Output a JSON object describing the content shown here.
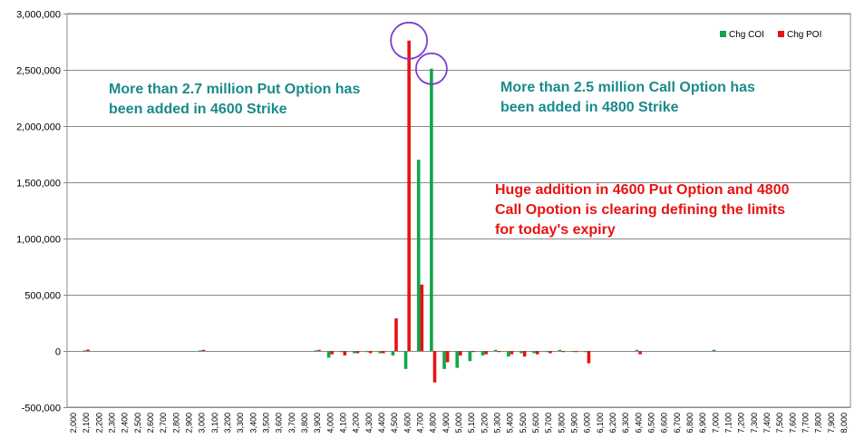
{
  "chart_data": {
    "type": "bar",
    "categories": [
      "2,000",
      "2,100",
      "2,200",
      "2,300",
      "2,400",
      "2,500",
      "2,600",
      "2,700",
      "2,800",
      "2,900",
      "3,000",
      "3,100",
      "3,200",
      "3,300",
      "3,400",
      "3,500",
      "3,600",
      "3,700",
      "3,800",
      "3,900",
      "4,000",
      "4,100",
      "4,200",
      "4,300",
      "4,400",
      "4,500",
      "4,600",
      "4,700",
      "4,800",
      "4,900",
      "5,000",
      "5,100",
      "5,200",
      "5,300",
      "5,400",
      "5,500",
      "5,600",
      "5,700",
      "5,800",
      "5,900",
      "6,000",
      "6,100",
      "6,200",
      "6,300",
      "6,400",
      "6,500",
      "6,600",
      "6,700",
      "6,800",
      "6,900",
      "7,000",
      "7,100",
      "7,200",
      "7,300",
      "7,400",
      "7,500",
      "7,600",
      "7,700",
      "7,800",
      "7,900",
      "8,000"
    ],
    "series": [
      {
        "name": "Chg COI",
        "color": "#11a64a",
        "values": [
          0,
          5000,
          0,
          0,
          0,
          0,
          0,
          0,
          0,
          0,
          5000,
          0,
          0,
          0,
          0,
          0,
          0,
          0,
          0,
          5000,
          -60000,
          -10000,
          -20000,
          -10000,
          -20000,
          -40000,
          -160000,
          1700000,
          2510000,
          -160000,
          -150000,
          -90000,
          -40000,
          10000,
          -50000,
          -20000,
          -20000,
          -10000,
          10000,
          -5000,
          -10000,
          0,
          0,
          0,
          10000,
          0,
          0,
          0,
          0,
          0,
          10000,
          0,
          0,
          0,
          0,
          0,
          0,
          0,
          0,
          0,
          0
        ]
      },
      {
        "name": "Chg POI",
        "color": "#e81212",
        "values": [
          0,
          12000,
          0,
          0,
          0,
          0,
          0,
          0,
          0,
          0,
          10000,
          0,
          0,
          0,
          0,
          0,
          0,
          0,
          0,
          10000,
          -30000,
          -40000,
          -20000,
          -20000,
          -20000,
          290000,
          2760000,
          590000,
          -280000,
          -100000,
          -40000,
          -10000,
          -30000,
          -10000,
          -30000,
          -50000,
          -30000,
          -20000,
          -10000,
          -10000,
          -110000,
          0,
          0,
          0,
          -30000,
          0,
          0,
          0,
          0,
          0,
          0,
          0,
          0,
          0,
          0,
          0,
          0,
          0,
          0,
          0,
          0
        ]
      }
    ],
    "ylim": [
      -500000,
      3000000
    ],
    "yticks": [
      -500000,
      0,
      500000,
      1000000,
      1500000,
      2000000,
      2500000,
      3000000
    ],
    "ytick_labels": [
      "-500,000",
      "0",
      "500,000",
      "1,000,000",
      "1,500,000",
      "2,000,000",
      "2,500,000",
      "3,000,000"
    ],
    "grid": true,
    "legend_position": "top-right",
    "title": "",
    "xlabel": "",
    "ylabel": ""
  },
  "annotations": [
    {
      "text": "More than 2.7 million Put Option has",
      "color": "#1a8a8a"
    },
    {
      "text": "been added in 4600 Strike",
      "color": "#1a8a8a"
    },
    {
      "text": "More than 2.5 million Call Option has",
      "color": "#1a8a8a"
    },
    {
      "text": "been added in 4800 Strike",
      "color": "#1a8a8a"
    },
    {
      "text": "Huge addition in 4600 Put Option and 4800",
      "color": "#e81212"
    },
    {
      "text": "Call Opotion is clearing defining the limits",
      "color": "#e81212"
    },
    {
      "text": "for today's expiry",
      "color": "#e81212"
    }
  ],
  "highlight_circles": [
    {
      "category": "4,600",
      "series": "Chg POI",
      "color": "#7a3fd0"
    },
    {
      "category": "4,800",
      "series": "Chg COI",
      "color": "#7a3fd0"
    }
  ]
}
